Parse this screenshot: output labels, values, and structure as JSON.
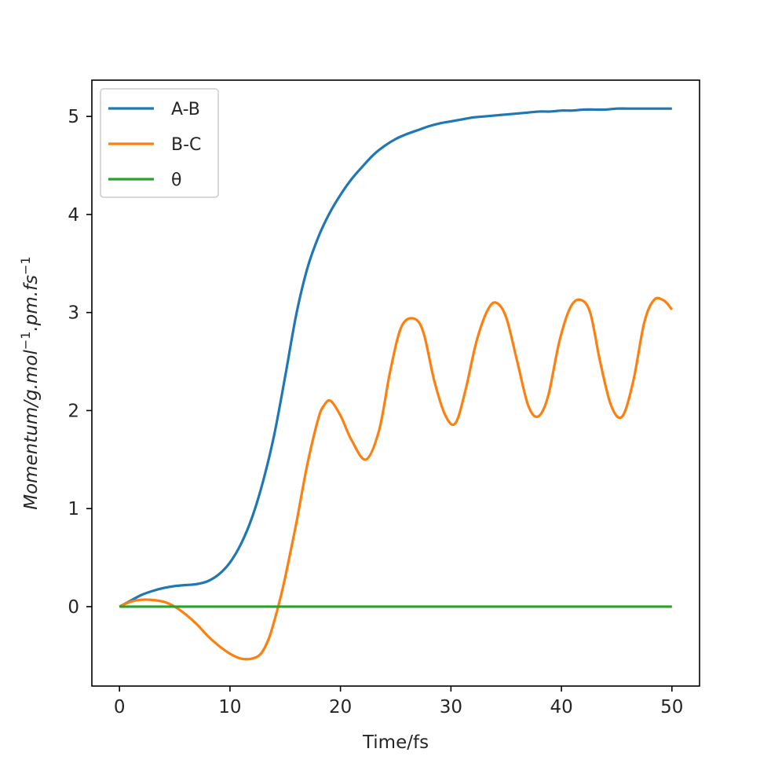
{
  "chart_data": {
    "type": "line",
    "title": "",
    "xlabel": "Time/fs",
    "ylabel": "Momentum/g.mol⁻¹.pm.fs⁻¹",
    "ylabel_parts": {
      "p1": "Momentum/g.mol",
      "s1": "−1",
      "p2": ".pm.fs",
      "s2": "−1"
    },
    "xlim": [
      -2.5,
      52.5
    ],
    "ylim": [
      -0.81,
      5.37
    ],
    "xticks": [
      0,
      10,
      20,
      30,
      40,
      50
    ],
    "yticks": [
      0,
      1,
      2,
      3,
      4,
      5
    ],
    "grid": false,
    "legend_position": "upper-left",
    "series": [
      {
        "name": "A-B",
        "color": "#1f77b4",
        "x": [
          0,
          1,
          2,
          3,
          4,
          5,
          6,
          7,
          8,
          9,
          10,
          11,
          12,
          13,
          14,
          15,
          16,
          17,
          18,
          19,
          20,
          21,
          22,
          23,
          24,
          25,
          26,
          27,
          28,
          29,
          30,
          31,
          32,
          33,
          34,
          35,
          36,
          37,
          38,
          39,
          40,
          41,
          42,
          43,
          44,
          45,
          46,
          47,
          48,
          49,
          50
        ],
        "y": [
          0.0,
          0.06,
          0.12,
          0.16,
          0.19,
          0.21,
          0.22,
          0.23,
          0.26,
          0.33,
          0.45,
          0.64,
          0.91,
          1.28,
          1.75,
          2.35,
          2.98,
          3.45,
          3.77,
          4.01,
          4.2,
          4.36,
          4.49,
          4.61,
          4.7,
          4.77,
          4.82,
          4.86,
          4.9,
          4.93,
          4.95,
          4.97,
          4.99,
          5.0,
          5.01,
          5.02,
          5.03,
          5.04,
          5.05,
          5.05,
          5.06,
          5.06,
          5.07,
          5.07,
          5.07,
          5.08,
          5.08,
          5.08,
          5.08,
          5.08,
          5.08
        ]
      },
      {
        "name": "B-C",
        "color": "#ff7f0e",
        "x": [
          0,
          1,
          2,
          2.8,
          4,
          5,
          6,
          7,
          8,
          9,
          10,
          11,
          12,
          12.8,
          13.5,
          14,
          14.5,
          15,
          16,
          17,
          18,
          18.5,
          19.1,
          20,
          21,
          22.3,
          23.5,
          24.5,
          25.5,
          26.6,
          27.5,
          28.5,
          29.5,
          30.4,
          31.3,
          32.3,
          33.3,
          34.1,
          35,
          36,
          37,
          37.9,
          38.8,
          39.8,
          40.8,
          41.7,
          42.6,
          43.5,
          44.5,
          45.5,
          46.5,
          47.5,
          48.4,
          49.3,
          50
        ],
        "y": [
          0.0,
          0.05,
          0.07,
          0.07,
          0.05,
          0.0,
          -0.08,
          -0.18,
          -0.3,
          -0.4,
          -0.48,
          -0.53,
          -0.53,
          -0.48,
          -0.33,
          -0.15,
          0.06,
          0.3,
          0.85,
          1.45,
          1.92,
          2.05,
          2.1,
          1.95,
          1.7,
          1.5,
          1.8,
          2.4,
          2.85,
          2.94,
          2.8,
          2.3,
          1.95,
          1.87,
          2.2,
          2.7,
          3.02,
          3.1,
          2.95,
          2.5,
          2.05,
          1.94,
          2.15,
          2.7,
          3.05,
          3.13,
          3.0,
          2.5,
          2.05,
          1.94,
          2.3,
          2.9,
          3.13,
          3.12,
          3.03
        ]
      },
      {
        "name": "θ",
        "color": "#2ca02c",
        "x": [
          0,
          50
        ],
        "y": [
          0.0,
          0.0
        ]
      }
    ]
  }
}
